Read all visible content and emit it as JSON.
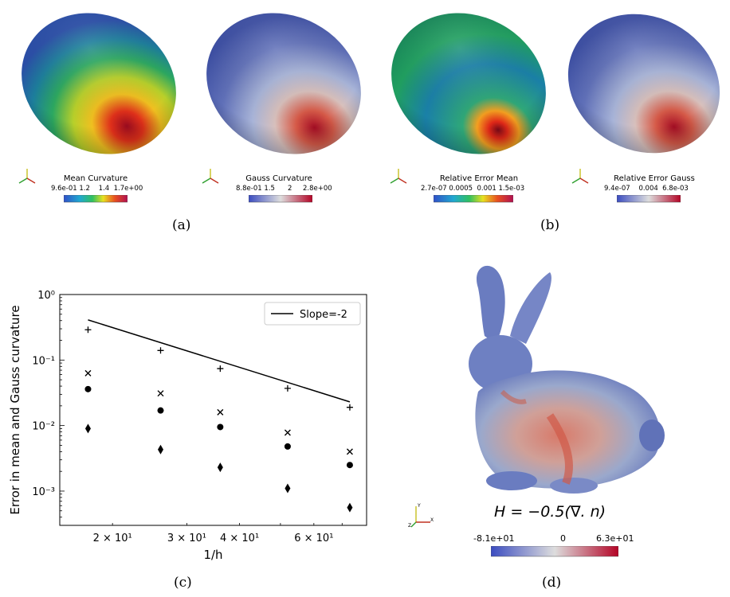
{
  "panels": {
    "a": {
      "caption": "(a)",
      "mean": {
        "title": "Mean Curvature",
        "ticks": "9.6e-01 1.2    1.4  1.7e+00"
      },
      "gauss": {
        "title": "Gauss Curvature",
        "ticks": "8.8e-01 1.5      2     2.8e+00"
      }
    },
    "b": {
      "caption": "(b)",
      "mean": {
        "title": "Relative Error Mean",
        "ticks": "2.7e-07 0.0005  0.001 1.5e-03"
      },
      "gauss": {
        "title": "Relative Error Gauss",
        "ticks": "9.4e-07    0.004  6.8e-03"
      }
    },
    "c": {
      "caption": "(c)"
    },
    "d": {
      "caption": "(d)",
      "formula": "H = −0.5(∇. n)",
      "ticks": [
        "-8.1e+01",
        "0",
        "6.3e+01"
      ]
    }
  },
  "axis_triad": {
    "x": "X",
    "y": "Y",
    "z": "Z"
  },
  "chart_data": {
    "type": "scatter",
    "xscale": "log",
    "yscale": "log",
    "xlabel": "1/h",
    "ylabel": "Error in mean and Gauss curvature",
    "xlim": [
      15,
      80
    ],
    "ylim": [
      0.0003,
      1
    ],
    "xtick_labels": [
      {
        "value": 20,
        "label": "2 × 10¹"
      },
      {
        "value": 30,
        "label": "3 × 10¹"
      },
      {
        "value": 40,
        "label": "4 × 10¹"
      },
      {
        "value": 60,
        "label": "6 × 10¹"
      }
    ],
    "ytick_labels": [
      {
        "value": 1,
        "label": "10⁰"
      },
      {
        "value": 0.1,
        "label": "10⁻¹"
      },
      {
        "value": 0.01,
        "label": "10⁻²"
      },
      {
        "value": 0.001,
        "label": "10⁻³"
      }
    ],
    "legend": {
      "position": "top-right",
      "entries": [
        "Slope=-2"
      ]
    },
    "reference_line": {
      "name": "Slope=-2",
      "x": [
        17.5,
        73
      ],
      "y": [
        0.41,
        0.023
      ]
    },
    "series": [
      {
        "marker": "plus",
        "x": [
          17.5,
          26,
          36,
          52,
          73
        ],
        "y": [
          0.29,
          0.14,
          0.074,
          0.037,
          0.019
        ]
      },
      {
        "marker": "x",
        "x": [
          17.5,
          26,
          36,
          52,
          73
        ],
        "y": [
          0.063,
          0.031,
          0.016,
          0.0078,
          0.004
        ]
      },
      {
        "marker": "circle",
        "x": [
          17.5,
          26,
          36,
          52,
          73
        ],
        "y": [
          0.036,
          0.017,
          0.0095,
          0.0048,
          0.0025
        ]
      },
      {
        "marker": "diamond",
        "x": [
          17.5,
          26,
          36,
          52,
          73
        ],
        "y": [
          0.009,
          0.0043,
          0.0023,
          0.0011,
          0.00056
        ]
      }
    ]
  },
  "colors": {
    "jet": [
      "#1f3fb0",
      "#1aa0c8",
      "#20c060",
      "#e8e020",
      "#e05010",
      "#a01020"
    ],
    "coolwarm": [
      "#3b4cc0",
      "#dddddd",
      "#b40426"
    ]
  }
}
